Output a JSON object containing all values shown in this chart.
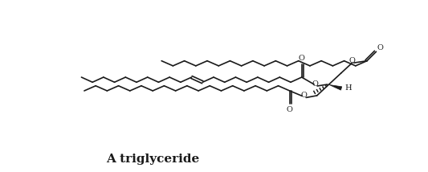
{
  "title": "A triglyceride",
  "title_fontsize": 11,
  "title_fontweight": "bold",
  "bg_color": "#ffffff",
  "line_color": "#1a1a1a",
  "line_width": 1.2,
  "fig_width": 5.33,
  "fig_height": 2.14,
  "dpi": 100,
  "xlim": [
    0,
    10.66
  ],
  "ylim": [
    0,
    4.28
  ]
}
